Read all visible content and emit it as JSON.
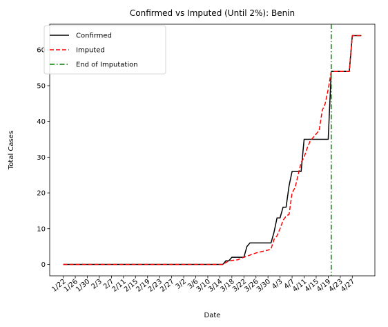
{
  "chart_data": {
    "type": "line",
    "title": "Confirmed vs Imputed (Until 2%): Benin",
    "xlabel": "Date",
    "ylabel": "Total Cases",
    "x_start": "1/22",
    "x_ticks": [
      "1/22",
      "1/26",
      "1/30",
      "2/3",
      "2/7",
      "2/11",
      "2/15",
      "2/19",
      "2/23",
      "2/27",
      "3/2",
      "3/6",
      "3/10",
      "3/14",
      "3/18",
      "3/22",
      "3/26",
      "3/30",
      "4/3",
      "4/7",
      "4/11",
      "4/15",
      "4/19",
      "4/23",
      "4/27"
    ],
    "y_ticks": [
      0,
      10,
      20,
      30,
      40,
      50,
      60
    ],
    "ylim": [
      -3.2,
      67.2
    ],
    "grid": false,
    "legend_position": "top-left",
    "series": [
      {
        "name": "Confirmed",
        "color": "#000000",
        "style": "solid",
        "points": [
          [
            "1/22",
            0
          ],
          [
            "3/15",
            0
          ],
          [
            "3/16",
            1
          ],
          [
            "3/17",
            1
          ],
          [
            "3/18",
            2
          ],
          [
            "3/21",
            2
          ],
          [
            "3/22",
            2
          ],
          [
            "3/23",
            5
          ],
          [
            "3/24",
            6
          ],
          [
            "3/31",
            6
          ],
          [
            "4/1",
            9
          ],
          [
            "4/2",
            13
          ],
          [
            "4/3",
            13
          ],
          [
            "4/4",
            16
          ],
          [
            "4/5",
            16
          ],
          [
            "4/6",
            22
          ],
          [
            "4/7",
            26
          ],
          [
            "4/10",
            26
          ],
          [
            "4/11",
            35
          ],
          [
            "4/19",
            35
          ],
          [
            "4/20",
            54
          ],
          [
            "4/26",
            54
          ],
          [
            "4/27",
            64
          ],
          [
            "4/30",
            64
          ]
        ]
      },
      {
        "name": "Imputed",
        "color": "#ff0000",
        "style": "dashed",
        "points": [
          [
            "1/22",
            0
          ],
          [
            "3/15",
            0
          ],
          [
            "3/16",
            0.5
          ],
          [
            "3/17",
            1
          ],
          [
            "3/20",
            1.3
          ],
          [
            "3/22",
            2
          ],
          [
            "3/26",
            3.2
          ],
          [
            "3/30",
            4
          ],
          [
            "3/31",
            4.3
          ],
          [
            "4/1",
            7
          ],
          [
            "4/2",
            8
          ],
          [
            "4/3",
            10
          ],
          [
            "4/4",
            12.3
          ],
          [
            "4/5",
            13.5
          ],
          [
            "4/6",
            14
          ],
          [
            "4/7",
            20
          ],
          [
            "4/8",
            21.5
          ],
          [
            "4/9",
            25
          ],
          [
            "4/10",
            28.5
          ],
          [
            "4/11",
            30
          ],
          [
            "4/12",
            32.5
          ],
          [
            "4/13",
            34.5
          ],
          [
            "4/14",
            35.5
          ],
          [
            "4/15",
            36.5
          ],
          [
            "4/16",
            37.5
          ],
          [
            "4/17",
            43
          ],
          [
            "4/18",
            45
          ],
          [
            "4/19",
            49
          ],
          [
            "4/20",
            54
          ],
          [
            "4/26",
            54
          ],
          [
            "4/27",
            64
          ],
          [
            "4/30",
            64
          ]
        ]
      },
      {
        "name": "End of Imputation",
        "color": "#008000",
        "style": "dashdot",
        "vertical_at": "4/20"
      }
    ]
  }
}
